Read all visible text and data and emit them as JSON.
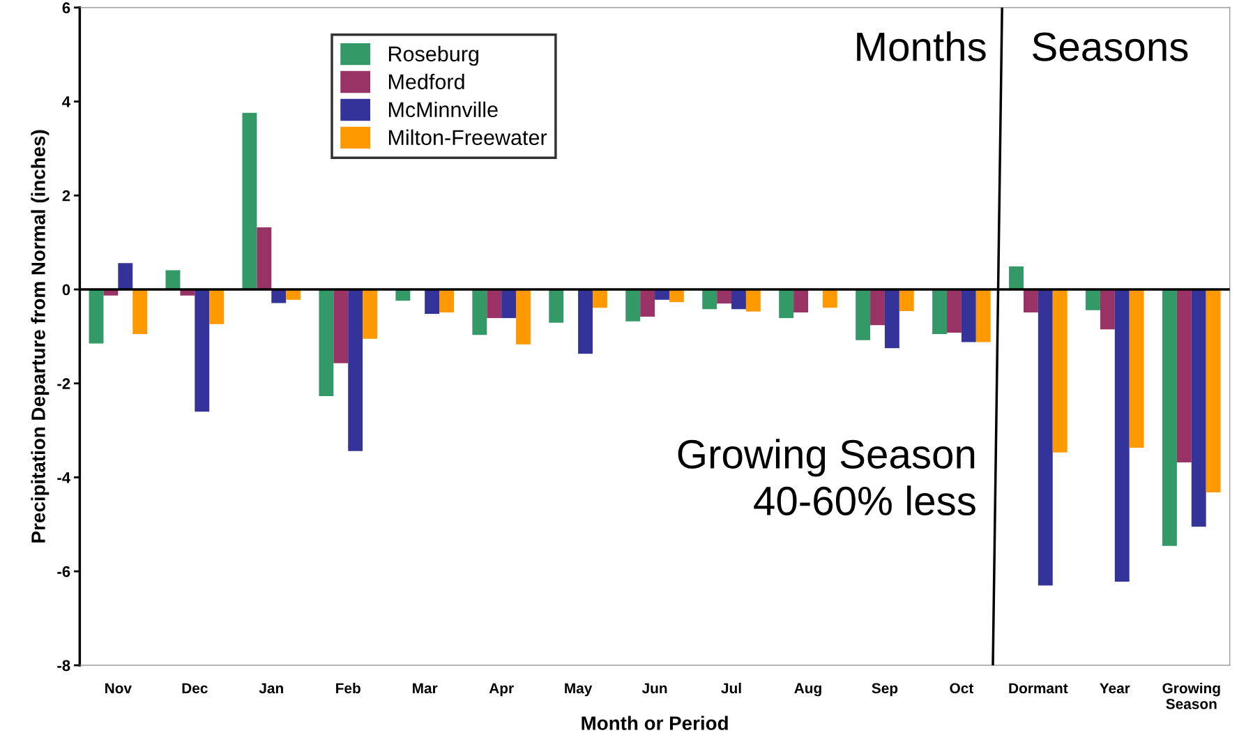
{
  "chart_data": {
    "type": "bar",
    "xlabel": "Month or Period",
    "ylabel": "Precipitation Departure from Normal (inches)",
    "categories": [
      "Nov",
      "Dec",
      "Jan",
      "Feb",
      "Mar",
      "Apr",
      "May",
      "Jun",
      "Jul",
      "Aug",
      "Sep",
      "Oct",
      "Dormant",
      "Year",
      "Growing\nSeason"
    ],
    "series": [
      {
        "name": "Roseburg",
        "color": "#339966",
        "values": [
          -1.15,
          0.41,
          3.76,
          -2.27,
          -0.24,
          -0.97,
          -0.71,
          -0.68,
          -0.42,
          -0.61,
          -1.08,
          -0.95,
          0.49,
          -0.44,
          -5.46
        ]
      },
      {
        "name": "Medford",
        "color": "#993366",
        "values": [
          -0.13,
          -0.13,
          1.32,
          -1.57,
          0,
          -0.61,
          null,
          -0.58,
          -0.3,
          -0.49,
          -0.76,
          -0.92,
          -0.49,
          -0.85,
          -3.68
        ]
      },
      {
        "name": "McMinnville",
        "color": "#333399",
        "values": [
          0.56,
          -2.6,
          -0.29,
          -3.44,
          -0.52,
          -0.61,
          -1.37,
          -0.22,
          -0.42,
          null,
          -1.25,
          -1.12,
          -6.3,
          -6.22,
          -5.05
        ]
      },
      {
        "name": "Milton-Freewater",
        "color": "#ff9900",
        "values": [
          -0.95,
          -0.74,
          -0.22,
          -1.05,
          -0.49,
          -1.17,
          -0.39,
          -0.27,
          -0.47,
          -0.39,
          -0.46,
          -1.12,
          -3.47,
          -3.37,
          -4.32
        ]
      }
    ],
    "ylim": [
      -8,
      6
    ],
    "yticks": [
      -8,
      -6,
      -4,
      -2,
      0,
      2,
      4,
      6
    ],
    "ref_lines": [
      {
        "axis": "y",
        "value": 0,
        "color": "#000000"
      }
    ],
    "annotations": [
      "Months",
      "Seasons",
      "Growing Season\n40-60% less"
    ],
    "grid": false,
    "legend": "top left"
  }
}
